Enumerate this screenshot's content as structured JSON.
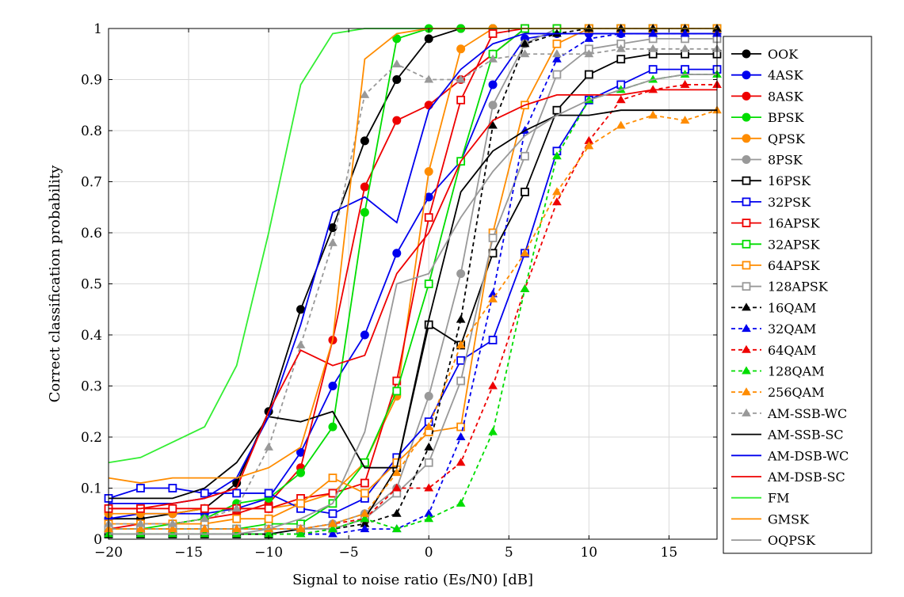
{
  "chart_data": {
    "type": "line",
    "xlabel": "Signal to noise ratio (Es/N0) [dB]",
    "ylabel": "Correct classification probability",
    "xlim": [
      -20,
      18
    ],
    "ylim": [
      0,
      1
    ],
    "x_ticks": [
      -20,
      -15,
      -10,
      -5,
      0,
      5,
      10,
      15
    ],
    "x_tick_labels": [
      "−20",
      "−15",
      "−10",
      "−5",
      "0",
      "5",
      "10",
      "15"
    ],
    "y_ticks": [
      0,
      0.1,
      0.2,
      0.3,
      0.4,
      0.5,
      0.6,
      0.7,
      0.8,
      0.9,
      1
    ],
    "y_tick_labels": [
      "0",
      "0.1",
      "0.2",
      "0.3",
      "0.4",
      "0.5",
      "0.6",
      "0.7",
      "0.8",
      "0.9",
      "1"
    ],
    "grid": true,
    "legend_position": "right",
    "x": [
      -20,
      -18,
      -16,
      -14,
      -12,
      -10,
      -8,
      -6,
      -4,
      -2,
      0,
      2,
      4,
      6,
      8,
      10,
      12,
      14,
      16,
      18
    ],
    "series": [
      {
        "name": "OOK",
        "color": "#000000",
        "marker": "circle",
        "dashed": false,
        "values": [
          0.04,
          0.04,
          0.05,
          0.06,
          0.11,
          0.25,
          0.45,
          0.61,
          0.78,
          0.9,
          0.98,
          1,
          1,
          1,
          1,
          1,
          1,
          1,
          1,
          1
        ]
      },
      {
        "name": "4ASK",
        "color": "#0000ee",
        "marker": "circle",
        "dashed": false,
        "values": [
          0.04,
          0.05,
          0.05,
          0.05,
          0.06,
          0.08,
          0.17,
          0.3,
          0.4,
          0.56,
          0.67,
          0.74,
          0.89,
          0.98,
          0.99,
          0.99,
          0.99,
          0.99,
          0.99,
          0.99
        ]
      },
      {
        "name": "8ASK",
        "color": "#ee0000",
        "marker": "circle",
        "dashed": false,
        "values": [
          0.02,
          0.03,
          0.03,
          0.04,
          0.05,
          0.07,
          0.14,
          0.39,
          0.69,
          0.82,
          0.85,
          0.9,
          0.95,
          1,
          1,
          1,
          1,
          1,
          1,
          1
        ]
      },
      {
        "name": "BPSK",
        "color": "#00dd00",
        "marker": "circle",
        "dashed": false,
        "values": [
          0.02,
          0.02,
          0.03,
          0.04,
          0.07,
          0.08,
          0.13,
          0.22,
          0.64,
          0.98,
          1,
          1,
          1,
          1,
          1,
          1,
          1,
          1,
          1,
          1
        ]
      },
      {
        "name": "QPSK",
        "color": "#ff8c00",
        "marker": "circle",
        "dashed": false,
        "values": [
          0.05,
          0.05,
          0.05,
          0.06,
          0.06,
          0.06,
          0.07,
          0.09,
          0.15,
          0.28,
          0.72,
          0.96,
          1,
          1,
          1,
          1,
          1,
          1,
          1,
          1
        ]
      },
      {
        "name": "8PSK",
        "color": "#999999",
        "marker": "circle",
        "dashed": false,
        "values": [
          0.02,
          0.02,
          0.02,
          0.02,
          0.02,
          0.02,
          0.02,
          0.03,
          0.05,
          0.1,
          0.28,
          0.52,
          0.85,
          0.97,
          1,
          1,
          1,
          1,
          1,
          1
        ]
      },
      {
        "name": "16PSK",
        "color": "#000000",
        "marker": "square",
        "dashed": false,
        "values": [
          0.01,
          0.01,
          0.01,
          0.01,
          0.01,
          0.01,
          0.02,
          0.02,
          0.04,
          0.14,
          0.42,
          0.38,
          0.56,
          0.68,
          0.84,
          0.91,
          0.94,
          0.95,
          0.95,
          0.95
        ]
      },
      {
        "name": "32PSK",
        "color": "#0000ee",
        "marker": "square",
        "dashed": false,
        "values": [
          0.08,
          0.1,
          0.1,
          0.09,
          0.09,
          0.09,
          0.06,
          0.05,
          0.08,
          0.16,
          0.23,
          0.35,
          0.39,
          0.56,
          0.76,
          0.86,
          0.89,
          0.92,
          0.92,
          0.92
        ]
      },
      {
        "name": "16APSK",
        "color": "#ee0000",
        "marker": "square",
        "dashed": false,
        "values": [
          0.06,
          0.06,
          0.06,
          0.06,
          0.06,
          0.06,
          0.08,
          0.09,
          0.11,
          0.31,
          0.63,
          0.86,
          0.99,
          1,
          1,
          1,
          1,
          1,
          1,
          1
        ]
      },
      {
        "name": "32APSK",
        "color": "#00dd00",
        "marker": "square",
        "dashed": false,
        "values": [
          0.02,
          0.02,
          0.02,
          0.02,
          0.02,
          0.03,
          0.03,
          0.07,
          0.15,
          0.29,
          0.5,
          0.74,
          0.95,
          1,
          1,
          1,
          1,
          1,
          1,
          1
        ]
      },
      {
        "name": "64APSK",
        "color": "#ff8c00",
        "marker": "square",
        "dashed": false,
        "values": [
          0.03,
          0.03,
          0.03,
          0.03,
          0.04,
          0.04,
          0.07,
          0.12,
          0.09,
          0.15,
          0.21,
          0.22,
          0.6,
          0.85,
          0.97,
          1,
          1,
          1,
          1,
          1
        ]
      },
      {
        "name": "128APSK",
        "color": "#999999",
        "marker": "square",
        "dashed": false,
        "values": [
          0.02,
          0.02,
          0.02,
          0.02,
          0.02,
          0.02,
          0.02,
          0.02,
          0.04,
          0.09,
          0.15,
          0.31,
          0.59,
          0.75,
          0.91,
          0.96,
          0.97,
          0.98,
          0.98,
          0.98
        ]
      },
      {
        "name": "16QAM",
        "color": "#000000",
        "marker": "triangle",
        "dashed": true,
        "values": [
          0.01,
          0.01,
          0.01,
          0.01,
          0.01,
          0.01,
          0.01,
          0.02,
          0.03,
          0.05,
          0.18,
          0.43,
          0.81,
          0.97,
          0.99,
          1,
          1,
          1,
          1,
          1
        ]
      },
      {
        "name": "32QAM",
        "color": "#0000ee",
        "marker": "triangle",
        "dashed": true,
        "values": [
          0.01,
          0.01,
          0.01,
          0.01,
          0.01,
          0.01,
          0.01,
          0.01,
          0.02,
          0.02,
          0.05,
          0.2,
          0.48,
          0.8,
          0.94,
          0.98,
          0.99,
          0.99,
          0.99,
          0.99
        ]
      },
      {
        "name": "64QAM",
        "color": "#ee0000",
        "marker": "triangle",
        "dashed": true,
        "values": [
          0.02,
          0.02,
          0.02,
          0.02,
          0.02,
          0.02,
          0.02,
          0.03,
          0.04,
          0.1,
          0.1,
          0.15,
          0.3,
          0.49,
          0.66,
          0.78,
          0.86,
          0.88,
          0.89,
          0.89
        ]
      },
      {
        "name": "128QAM",
        "color": "#00dd00",
        "marker": "triangle",
        "dashed": true,
        "values": [
          0.01,
          0.01,
          0.01,
          0.01,
          0.01,
          0.01,
          0.01,
          0.02,
          0.04,
          0.02,
          0.04,
          0.07,
          0.21,
          0.49,
          0.75,
          0.86,
          0.88,
          0.9,
          0.91,
          0.91
        ]
      },
      {
        "name": "256QAM",
        "color": "#ff8c00",
        "marker": "triangle",
        "dashed": true,
        "values": [
          0.02,
          0.02,
          0.02,
          0.02,
          0.02,
          0.02,
          0.02,
          0.03,
          0.05,
          0.13,
          0.22,
          0.38,
          0.47,
          0.56,
          0.68,
          0.77,
          0.81,
          0.83,
          0.82,
          0.84
        ]
      },
      {
        "name": "AM-SSB-WC",
        "color": "#999999",
        "marker": "triangle",
        "dashed": true,
        "values": [
          0.03,
          0.03,
          0.03,
          0.04,
          0.06,
          0.18,
          0.38,
          0.58,
          0.87,
          0.93,
          0.9,
          0.9,
          0.94,
          0.95,
          0.95,
          0.95,
          0.96,
          0.96,
          0.96,
          0.96
        ]
      },
      {
        "name": "AM-SSB-SC",
        "color": "#000000",
        "marker": "none",
        "dashed": false,
        "values": [
          0.08,
          0.08,
          0.08,
          0.1,
          0.15,
          0.24,
          0.23,
          0.25,
          0.14,
          0.14,
          0.43,
          0.68,
          0.76,
          0.8,
          0.83,
          0.83,
          0.84,
          0.84,
          0.84,
          0.84
        ]
      },
      {
        "name": "AM-DSB-WC",
        "color": "#0000ee",
        "marker": "none",
        "dashed": false,
        "values": [
          0.07,
          0.07,
          0.07,
          0.08,
          0.12,
          0.24,
          0.42,
          0.64,
          0.67,
          0.62,
          0.84,
          0.92,
          0.97,
          0.99,
          0.99,
          0.99,
          0.99,
          0.99,
          0.99,
          0.99
        ]
      },
      {
        "name": "AM-DSB-SC",
        "color": "#ee0000",
        "marker": "none",
        "dashed": false,
        "values": [
          0.06,
          0.06,
          0.07,
          0.08,
          0.1,
          0.25,
          0.37,
          0.34,
          0.36,
          0.52,
          0.6,
          0.74,
          0.82,
          0.85,
          0.87,
          0.87,
          0.87,
          0.88,
          0.88,
          0.88
        ]
      },
      {
        "name": "FM",
        "color": "#33ee33",
        "marker": "none",
        "dashed": false,
        "values": [
          0.15,
          0.16,
          0.19,
          0.22,
          0.34,
          0.6,
          0.89,
          0.99,
          1,
          1,
          1,
          1,
          1,
          1,
          1,
          1,
          1,
          1,
          1,
          1
        ]
      },
      {
        "name": "GMSK",
        "color": "#ff8c00",
        "marker": "none",
        "dashed": false,
        "values": [
          0.12,
          0.11,
          0.12,
          0.12,
          0.12,
          0.14,
          0.18,
          0.39,
          0.94,
          0.99,
          1,
          1,
          1,
          1,
          1,
          1,
          1,
          1,
          1,
          1
        ]
      },
      {
        "name": "OQPSK",
        "color": "#999999",
        "marker": "none",
        "dashed": false,
        "values": [
          0.01,
          0.01,
          0.01,
          0.01,
          0.01,
          0.02,
          0.04,
          0.07,
          0.21,
          0.5,
          0.52,
          0.63,
          0.72,
          0.79,
          0.83,
          0.86,
          0.88,
          0.9,
          0.91,
          0.91
        ]
      }
    ]
  }
}
